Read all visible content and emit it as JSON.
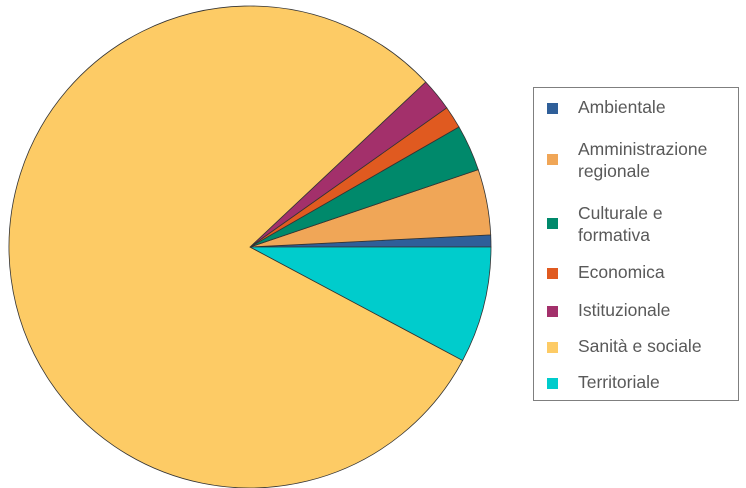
{
  "chart_data": {
    "type": "pie",
    "categories": [
      "Ambientale",
      "Amministrazione regionale",
      "Culturale e formativa",
      "Economica",
      "Istituzionale",
      "Sanità e sociale",
      "Territoriale"
    ],
    "values": [
      0.8,
      4.4,
      3.1,
      1.5,
      2.2,
      80.2,
      7.8
    ],
    "unit": "percent (estimated share)",
    "colors": [
      "#2f5f99",
      "#f0a657",
      "#00896b",
      "#e05a20",
      "#a3306b",
      "#fdcb65",
      "#00cccc"
    ],
    "legend_placement": "right",
    "start_angle_deg": 0,
    "direction": "counterclockwise",
    "legend": {
      "labels": [
        "Ambientale",
        "Amministrazione\nregionale",
        "Culturale e\nformativa",
        "Economica",
        "Istituzionale",
        "Sanità e sociale",
        "Territoriale"
      ]
    }
  }
}
